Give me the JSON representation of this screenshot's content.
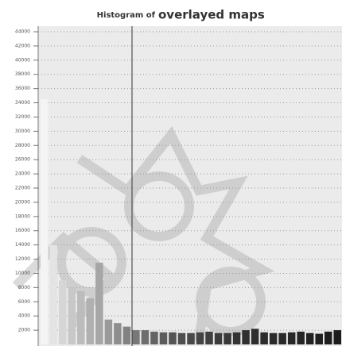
{
  "chart_data": {
    "type": "bar",
    "title": [
      "Histogram of",
      "overlayed maps"
    ],
    "categories": [
      null,
      null,
      null,
      null,
      null,
      null,
      null,
      null,
      null,
      null,
      null,
      null,
      null,
      null,
      null,
      null,
      null,
      null,
      null,
      null,
      null,
      null,
      null,
      null,
      null,
      null,
      null,
      null,
      null,
      null,
      null,
      null,
      null
    ],
    "values": [
      34500,
      14000,
      9000,
      8000,
      7500,
      6500,
      11500,
      3500,
      3000,
      2500,
      2000,
      2000,
      1800,
      1700,
      1700,
      1600,
      1600,
      1700,
      1800,
      1600,
      1600,
      1700,
      2000,
      2200,
      1700,
      1600,
      1600,
      1700,
      1800,
      1600,
      1500,
      1800,
      2000
    ],
    "colors": [
      "#f4f4f4",
      "#e4e4e4",
      "#d6d6d6",
      "#c8c8c8",
      "#bcbcbc",
      "#b0b0b0",
      "#a6a6a6",
      "#9a9a9a",
      "#8e8e8e",
      "#828282",
      "#787878",
      "#6e6e6e",
      "#646464",
      "#5c5c5c",
      "#545454",
      "#4e4e4e",
      "#484848",
      "#444444",
      "#404040",
      "#3c3c3c",
      "#383838",
      "#343434",
      "#303030",
      "#2e2e2e",
      "#2c2c2c",
      "#2a2a2a",
      "#282828",
      "#262626",
      "#242424",
      "#222222",
      "#202020",
      "#1e1e1e",
      "#1c1c1c"
    ],
    "ylim": [
      0,
      44000
    ],
    "yticks": [
      2000,
      4000,
      6000,
      8000,
      10000,
      12000,
      14000,
      16000,
      18000,
      20000,
      22000,
      24000,
      26000,
      28000,
      30000,
      32000,
      34000,
      36000,
      38000,
      40000,
      42000,
      44000
    ],
    "grid": true
  }
}
